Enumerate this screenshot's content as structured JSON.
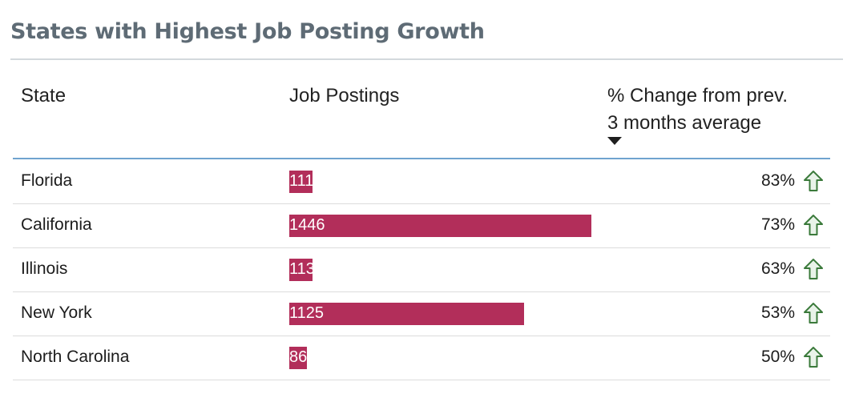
{
  "title": "States with Highest Job Posting Growth",
  "columns": {
    "state": "State",
    "postings": "Job Postings",
    "change_line1": "% Change from prev.",
    "change_line2": "3 months average"
  },
  "sort_icon": "sort-descending-icon",
  "colors": {
    "bar": "#b22e5a",
    "up_arrow": "#3b7a3b",
    "title": "#5e6b75",
    "header_rule": "#6fa3cf"
  },
  "chart_data": {
    "type": "table",
    "bar_max": 1446,
    "rows": [
      {
        "state": "Florida",
        "postings": 111,
        "postings_label": "111",
        "change": "83%",
        "trend": "up-arrow-icon"
      },
      {
        "state": "California",
        "postings": 1446,
        "postings_label": "1446",
        "change": "73%",
        "trend": "up-arrow-icon"
      },
      {
        "state": "Illinois",
        "postings": 113,
        "postings_label": "113",
        "change": "63%",
        "trend": "up-arrow-icon"
      },
      {
        "state": "New York",
        "postings": 1125,
        "postings_label": "1125",
        "change": "53%",
        "trend": "up-arrow-icon"
      },
      {
        "state": "North Carolina",
        "postings": 86,
        "postings_label": "86",
        "change": "50%",
        "trend": "up-arrow-icon"
      }
    ]
  }
}
